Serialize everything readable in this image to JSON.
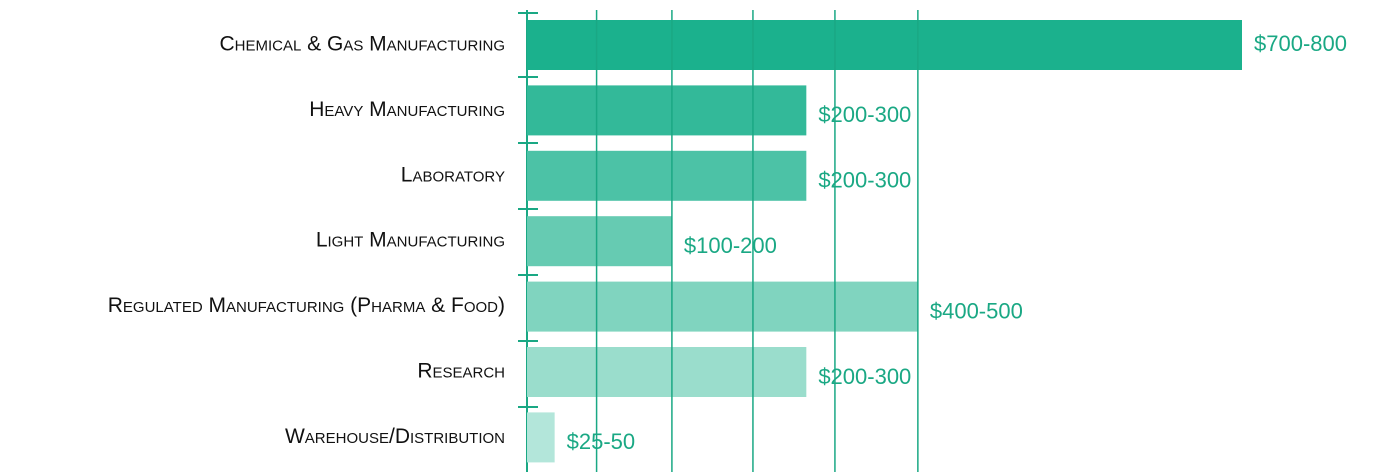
{
  "chart_data": {
    "type": "hbar",
    "categories": [
      "Chemical & Gas Manufacturing",
      "Heavy Manufacturing",
      "Laboratory",
      "Light Manufacturing",
      "Regulated Manufacturing (Pharma & Food)",
      "Research",
      "Warehouse/Distribution"
    ],
    "values": [
      750,
      293,
      293,
      152,
      410,
      293,
      29
    ],
    "value_labels": [
      "$700-800",
      "$200-300",
      "$200-300",
      "$100-200",
      "$400-500",
      "$200-300",
      "$25-50"
    ],
    "colors": [
      "#1bb18d",
      "#33b999",
      "#4cc2a6",
      "#66cbb2",
      "#80d4bf",
      "#9addcc",
      "#b3e6da"
    ],
    "xlim": [
      0,
      900
    ],
    "xticks": [
      73,
      152,
      237,
      323,
      410
    ],
    "grid": true
  }
}
